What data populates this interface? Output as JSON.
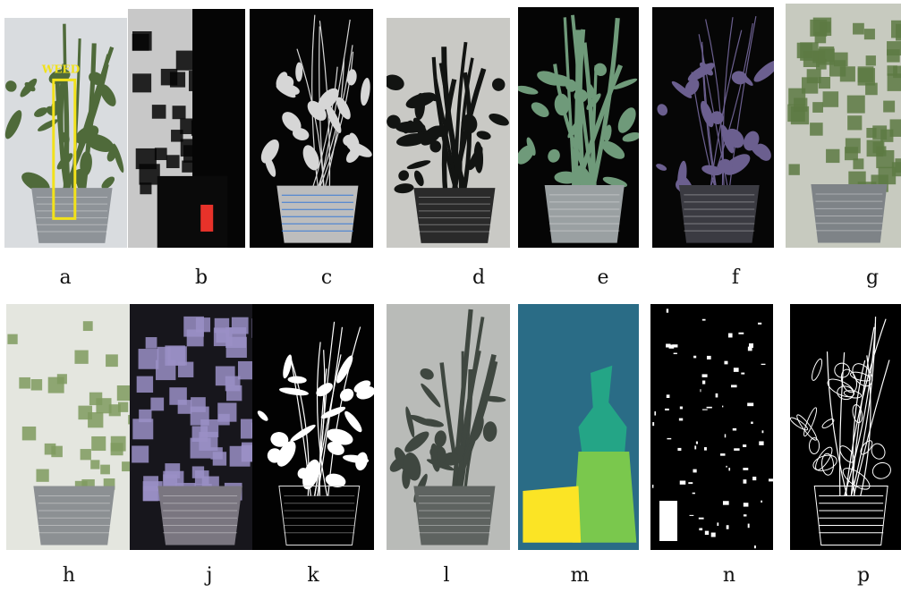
{
  "annotation": {
    "text": "WEED",
    "color": "#f2e21a"
  },
  "panels": [
    {
      "id": "a",
      "label": "a",
      "style": "original",
      "bg": "#d9dcdf",
      "leaf": "#4f6a3a",
      "pot": "#8e9398"
    },
    {
      "id": "b",
      "label": "b",
      "style": "binary-blocks",
      "bg": "#c8c8c8",
      "leaf": "#050505",
      "pot": "#0a0a0a",
      "accent": "#e7322a"
    },
    {
      "id": "c",
      "label": "c",
      "style": "threshold-noise",
      "bg": "#050505",
      "leaf": "#d6d6d6",
      "pot": "#bdbdbd"
    },
    {
      "id": "d",
      "label": "d",
      "style": "gray-dark-plant",
      "bg": "#c9c9c5",
      "leaf": "#121412",
      "pot": "#2a2a2a"
    },
    {
      "id": "e",
      "label": "e",
      "style": "green-on-black",
      "bg": "#050505",
      "leaf": "#6f9a7a",
      "pot": "#9aa0a2"
    },
    {
      "id": "f",
      "label": "f",
      "style": "purple-on-black",
      "bg": "#060606",
      "leaf": "#6b5f8f",
      "pot": "#3b3b42"
    },
    {
      "id": "g",
      "label": "g",
      "style": "pixelated",
      "bg": "#c7cabf",
      "leaf": "#5d7a43",
      "pot": "#7e8387"
    },
    {
      "id": "h",
      "label": "h",
      "style": "pixelated-light",
      "bg": "#e4e6df",
      "leaf": "#7f9a5f",
      "pot": "#8c9093"
    },
    {
      "id": "j",
      "label": "j",
      "style": "purple-blocks",
      "bg": "#17161c",
      "leaf": "#9a8fc5",
      "pot": "#7a7680"
    },
    {
      "id": "k",
      "label": "k",
      "style": "white-on-black",
      "bg": "#020202",
      "leaf": "#ffffff",
      "pot": "#dedede"
    },
    {
      "id": "l",
      "label": "l",
      "style": "quantized",
      "bg": "#b9bbb8",
      "leaf": "#3f4740",
      "pot": "#5e6360"
    },
    {
      "id": "m",
      "label": "m",
      "style": "segmentation",
      "bg": "#2a6c86",
      "c1": "#24a586",
      "c2": "#7ac84d",
      "c3": "#fbe425"
    },
    {
      "id": "n",
      "label": "n",
      "style": "sparse-white",
      "bg": "#000000",
      "leaf": "#ffffff"
    },
    {
      "id": "p",
      "label": "p",
      "style": "edges",
      "bg": "#000000",
      "leaf": "#ffffff"
    }
  ]
}
